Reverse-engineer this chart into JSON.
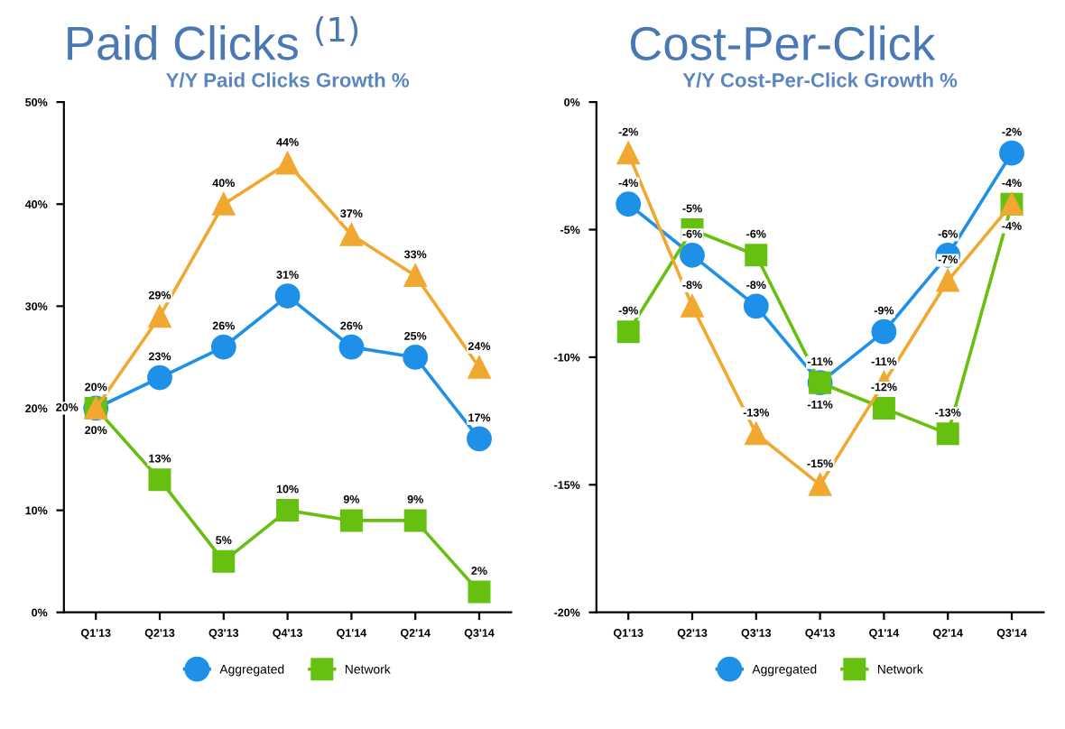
{
  "chart_data": [
    {
      "type": "line",
      "title": "Paid Clicks $^{(1)}$",
      "subtitle": "Y/Y Paid Clicks Growth %",
      "categories": [
        "Q1'13",
        "Q2'13",
        "Q3'13",
        "Q4'13",
        "Q1'14",
        "Q2'14",
        "Q3'14"
      ],
      "series": [
        {
          "name": "Aggregated",
          "color": "#1e90e8",
          "marker": "circle",
          "values": [
            20,
            23,
            26,
            31,
            26,
            25,
            17
          ],
          "value_labels": [
            "20%",
            "23%",
            "26%",
            "31%",
            "26%",
            "25%",
            "17%"
          ]
        },
        {
          "name": "Network",
          "color": "#66c010",
          "marker": "square",
          "values": [
            20,
            13,
            5,
            10,
            9,
            9,
            2
          ],
          "value_labels": [
            "20%",
            "13%",
            "5%",
            "10%",
            "9%",
            "9%",
            "2%"
          ]
        },
        {
          "color": "#f0a830",
          "marker": "triangle",
          "values": [
            20,
            29,
            40,
            44,
            37,
            33,
            24
          ],
          "value_labels": [
            "20%",
            "29%",
            "40%",
            "44%",
            "37%",
            "33%",
            "24%"
          ]
        }
      ],
      "ylim": [
        0,
        50
      ],
      "yticks": [
        {
          "value": 0,
          "label": "0%"
        },
        {
          "value": 10,
          "label": "10%"
        },
        {
          "value": 20,
          "label": "20%"
        },
        {
          "value": 30,
          "label": "30%"
        },
        {
          "value": 40,
          "label": "40%"
        },
        {
          "value": 50,
          "label": "50%"
        }
      ],
      "grid": false,
      "legend": "bottom"
    },
    {
      "type": "line",
      "title": "Cost-Per-Click",
      "subtitle": "Y/Y Cost-Per-Click Growth %",
      "categories": [
        "Q1'13",
        "Q2'13",
        "Q3'13",
        "Q4'13",
        "Q1'14",
        "Q2'14",
        "Q3'14"
      ],
      "series": [
        {
          "name": "Aggregated",
          "color": "#1e90e8",
          "marker": "circle",
          "values": [
            -4,
            -6,
            -8,
            -11,
            -9,
            -6,
            -2
          ],
          "value_labels": [
            "-4%",
            "-6%",
            "-8%",
            "-11%",
            "-9%",
            "-6%",
            "-2%"
          ]
        },
        {
          "name": "Network",
          "color": "#66c010",
          "marker": "square",
          "values": [
            -9,
            -5,
            -6,
            -11,
            -12,
            -13,
            -4
          ],
          "value_labels": [
            "-9%",
            "-5%",
            "-6%",
            "-11%",
            "-12%",
            "-13%",
            "-4%"
          ]
        },
        {
          "color": "#f0a830",
          "marker": "triangle",
          "values": [
            -2,
            -8,
            -13,
            -15,
            -11,
            -7,
            -4
          ],
          "value_labels": [
            "-2%",
            "-8%",
            "-13%",
            "-15%",
            "-11%",
            "-7%",
            "-4%"
          ]
        }
      ],
      "ylim": [
        -20,
        0
      ],
      "yticks": [
        {
          "value": -20,
          "label": "-20%"
        },
        {
          "value": -15,
          "label": "-15%"
        },
        {
          "value": -10,
          "label": "-10%"
        },
        {
          "value": -5,
          "label": "-5%"
        },
        {
          "value": 0,
          "label": "0%"
        }
      ],
      "grid": false,
      "legend": "bottom"
    }
  ]
}
